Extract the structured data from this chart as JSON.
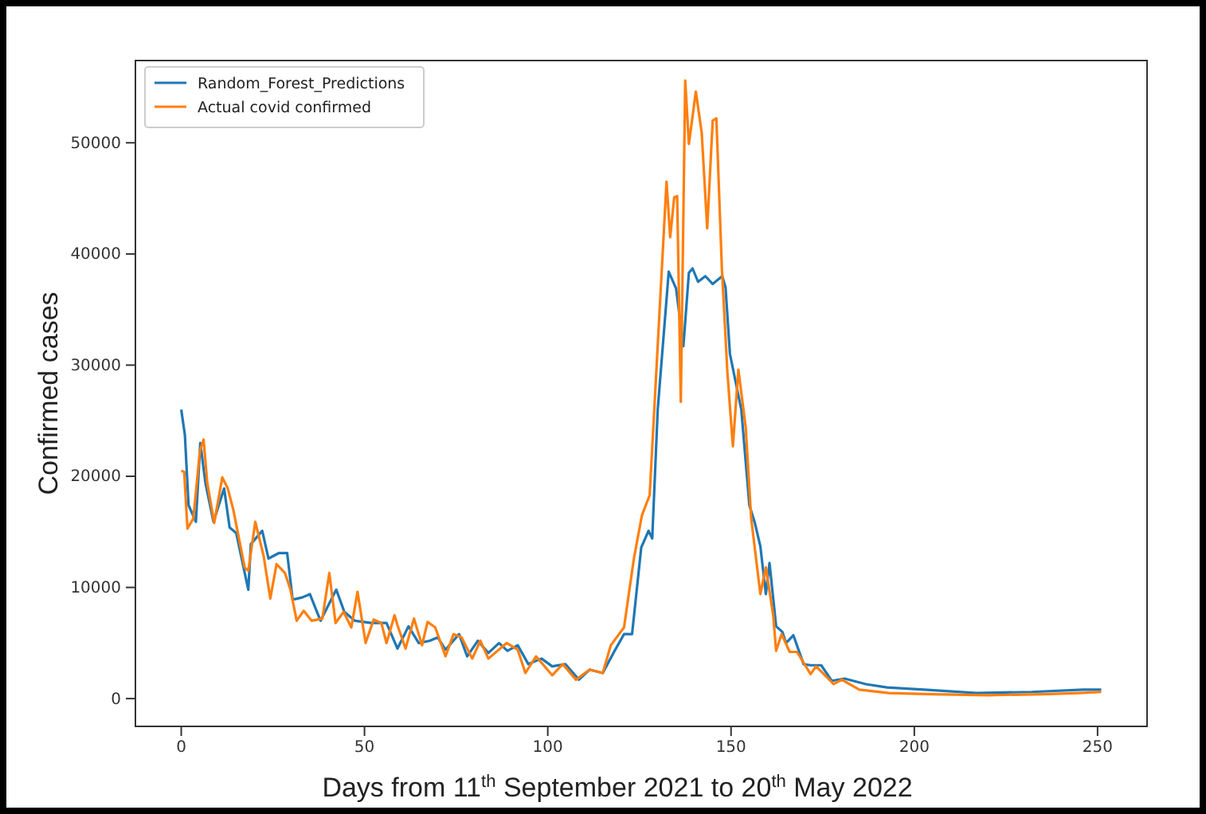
{
  "chart_data": {
    "type": "line",
    "xlabel": "Days from 11$^{th}$ September 2021 to 20$^{th}$ May 2022",
    "ylabel": "Confirmed cases",
    "xlim": [
      -12.5,
      263.5
    ],
    "ylim": [
      -2500,
      57400
    ],
    "xticks": [
      0,
      50,
      100,
      150,
      200,
      250
    ],
    "yticks": [
      0,
      10000,
      20000,
      30000,
      40000,
      50000
    ],
    "grid": false,
    "legend": "top left",
    "line_style": "solid",
    "marker": "none",
    "series": [
      {
        "name": "Random_Forest_Predictions",
        "color": "#1f77b4",
        "x": [
          0,
          1,
          2,
          4,
          5.2,
          6.6,
          8.8,
          11.7,
          13.2,
          15,
          18.3,
          19,
          22.1,
          23.8,
          26.7,
          28.9,
          30.4,
          33,
          35.1,
          38,
          42.3,
          44.5,
          47.4,
          51.8,
          56,
          59,
          62,
          64.8,
          67.8,
          70,
          72.1,
          75.8,
          78,
          80.9,
          83.8,
          86.7,
          89,
          91.8,
          94.7,
          98.3,
          101.2,
          104.8,
          108.5,
          111.4,
          115,
          117.9,
          120.8,
          123,
          125.5,
          127.5,
          128.5,
          130,
          133,
          135,
          137,
          138.5,
          139.5,
          141,
          143,
          145,
          147.6,
          148.5,
          149.7,
          152.8,
          155,
          156.5,
          158,
          159.5,
          160.5,
          162.3,
          164,
          165,
          167,
          169.8,
          171.7,
          174.6,
          177.5,
          181,
          186.8,
          192.6,
          202.7,
          217,
          232,
          246,
          251
        ],
        "values": [
          26000,
          23700,
          17400,
          15900,
          23000,
          19400,
          15900,
          18900,
          15400,
          14900,
          9800,
          13900,
          15100,
          12600,
          13100,
          13100,
          8900,
          9100,
          9400,
          7000,
          9800,
          7800,
          7000,
          6800,
          6800,
          4500,
          6500,
          5000,
          5200,
          5500,
          4400,
          5800,
          3800,
          5200,
          4100,
          5000,
          4300,
          4800,
          3100,
          3600,
          2900,
          3100,
          1700,
          2600,
          2300,
          4100,
          5800,
          5800,
          13600,
          15100,
          14400,
          26000,
          38400,
          36900,
          31700,
          38300,
          38700,
          37500,
          38000,
          37300,
          38000,
          37000,
          31000,
          26000,
          17400,
          15800,
          13700,
          9400,
          12200,
          6500,
          6000,
          5000,
          5700,
          3100,
          3000,
          3000,
          1600,
          1800,
          1300,
          1000,
          800,
          500,
          600,
          800,
          800
        ]
      },
      {
        "name": "Actual covid confirmed",
        "color": "#ff7f0e",
        "x": [
          0,
          0.8,
          1.7,
          3.3,
          5.1,
          6.1,
          7.1,
          9,
          11.2,
          12.7,
          14.2,
          17.3,
          18.3,
          20.2,
          22.5,
          24.3,
          26,
          28.3,
          29.8,
          31.5,
          33.4,
          35.6,
          38.5,
          40.4,
          42.1,
          44.3,
          46.4,
          48.1,
          50.3,
          52.5,
          54.6,
          56,
          58.2,
          59,
          61.2,
          63.5,
          65.7,
          67.2,
          69.3,
          72.1,
          74.3,
          76.5,
          79.4,
          81.6,
          83.8,
          88.8,
          91.8,
          93.9,
          96.8,
          101.2,
          104.1,
          107.7,
          111.4,
          115,
          117.2,
          120.8,
          123.5,
          125.7,
          127.8,
          132.4,
          133.4,
          134.5,
          135.3,
          136.3,
          137.5,
          138.5,
          140.4,
          142,
          143.5,
          145,
          146,
          147.5,
          149,
          150.5,
          152,
          154,
          155.5,
          158,
          159.5,
          161.5,
          162.3,
          163.8,
          166,
          168,
          171.7,
          173.2,
          178,
          180.2,
          185,
          193,
          205,
          220,
          235,
          245,
          251
        ],
        "values": [
          20500,
          20400,
          15300,
          16200,
          22300,
          23300,
          19400,
          15800,
          19900,
          18900,
          17000,
          11800,
          11500,
          15900,
          12800,
          9000,
          12100,
          11300,
          9800,
          7000,
          7900,
          7000,
          7200,
          11300,
          6800,
          7800,
          6400,
          9600,
          5000,
          7100,
          6800,
          5000,
          7500,
          6600,
          4500,
          7200,
          4800,
          6900,
          6400,
          3800,
          5800,
          5500,
          3600,
          5200,
          3600,
          5000,
          4400,
          2300,
          3800,
          2100,
          3100,
          1700,
          2600,
          2300,
          4800,
          6400,
          12600,
          16500,
          18300,
          46500,
          41500,
          45100,
          45200,
          26700,
          55600,
          49900,
          54600,
          50900,
          42300,
          52000,
          52200,
          38700,
          29400,
          22700,
          29600,
          24400,
          16200,
          9400,
          11800,
          7500,
          4300,
          5800,
          4200,
          4200,
          2200,
          2900,
          1300,
          1700,
          800,
          500,
          400,
          300,
          400,
          500,
          600
        ]
      }
    ]
  }
}
